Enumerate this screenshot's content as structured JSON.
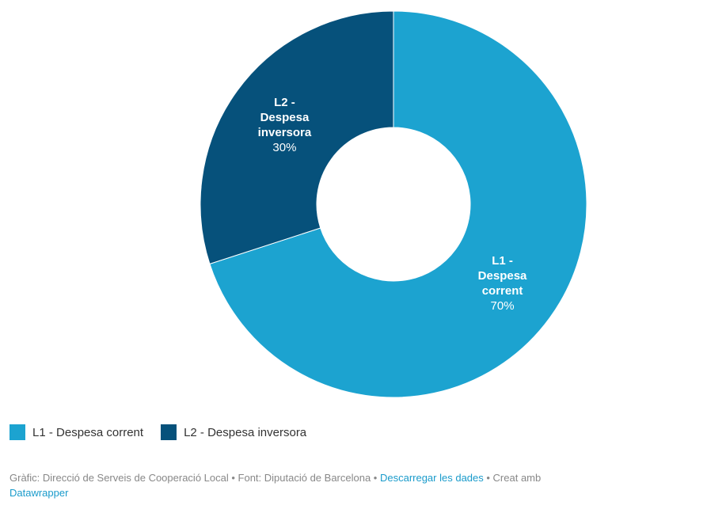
{
  "chart_data": {
    "type": "pie",
    "donut": true,
    "categories": [
      "L1 - Despesa corrent",
      "L2 - Despesa inversora"
    ],
    "values": [
      70,
      30
    ],
    "slice_labels": [
      {
        "name": "L1 -\nDespesa\ncorrent",
        "value": "70%"
      },
      {
        "name": "L2 -\nDespesa\ninversora",
        "value": "30%"
      }
    ],
    "colors": [
      "#1ca3d0",
      "#06517b"
    ],
    "legend": [
      {
        "label": "L1 - Despesa corrent",
        "color": "#1ca3d0"
      },
      {
        "label": "L2 - Despesa inversora",
        "color": "#06517b"
      }
    ],
    "legend_position": "bottom-left"
  },
  "footer": {
    "chart_text": "Gràfic: Direcció de Serveis de Cooperació Local",
    "sep1": " • ",
    "source_text": "Font: Diputació de Barcelona",
    "sep2": " • ",
    "download_link": "Descarregar les dades",
    "sep3": " • ",
    "created_text": "Creat amb",
    "datawrapper_link": "Datawrapper"
  }
}
